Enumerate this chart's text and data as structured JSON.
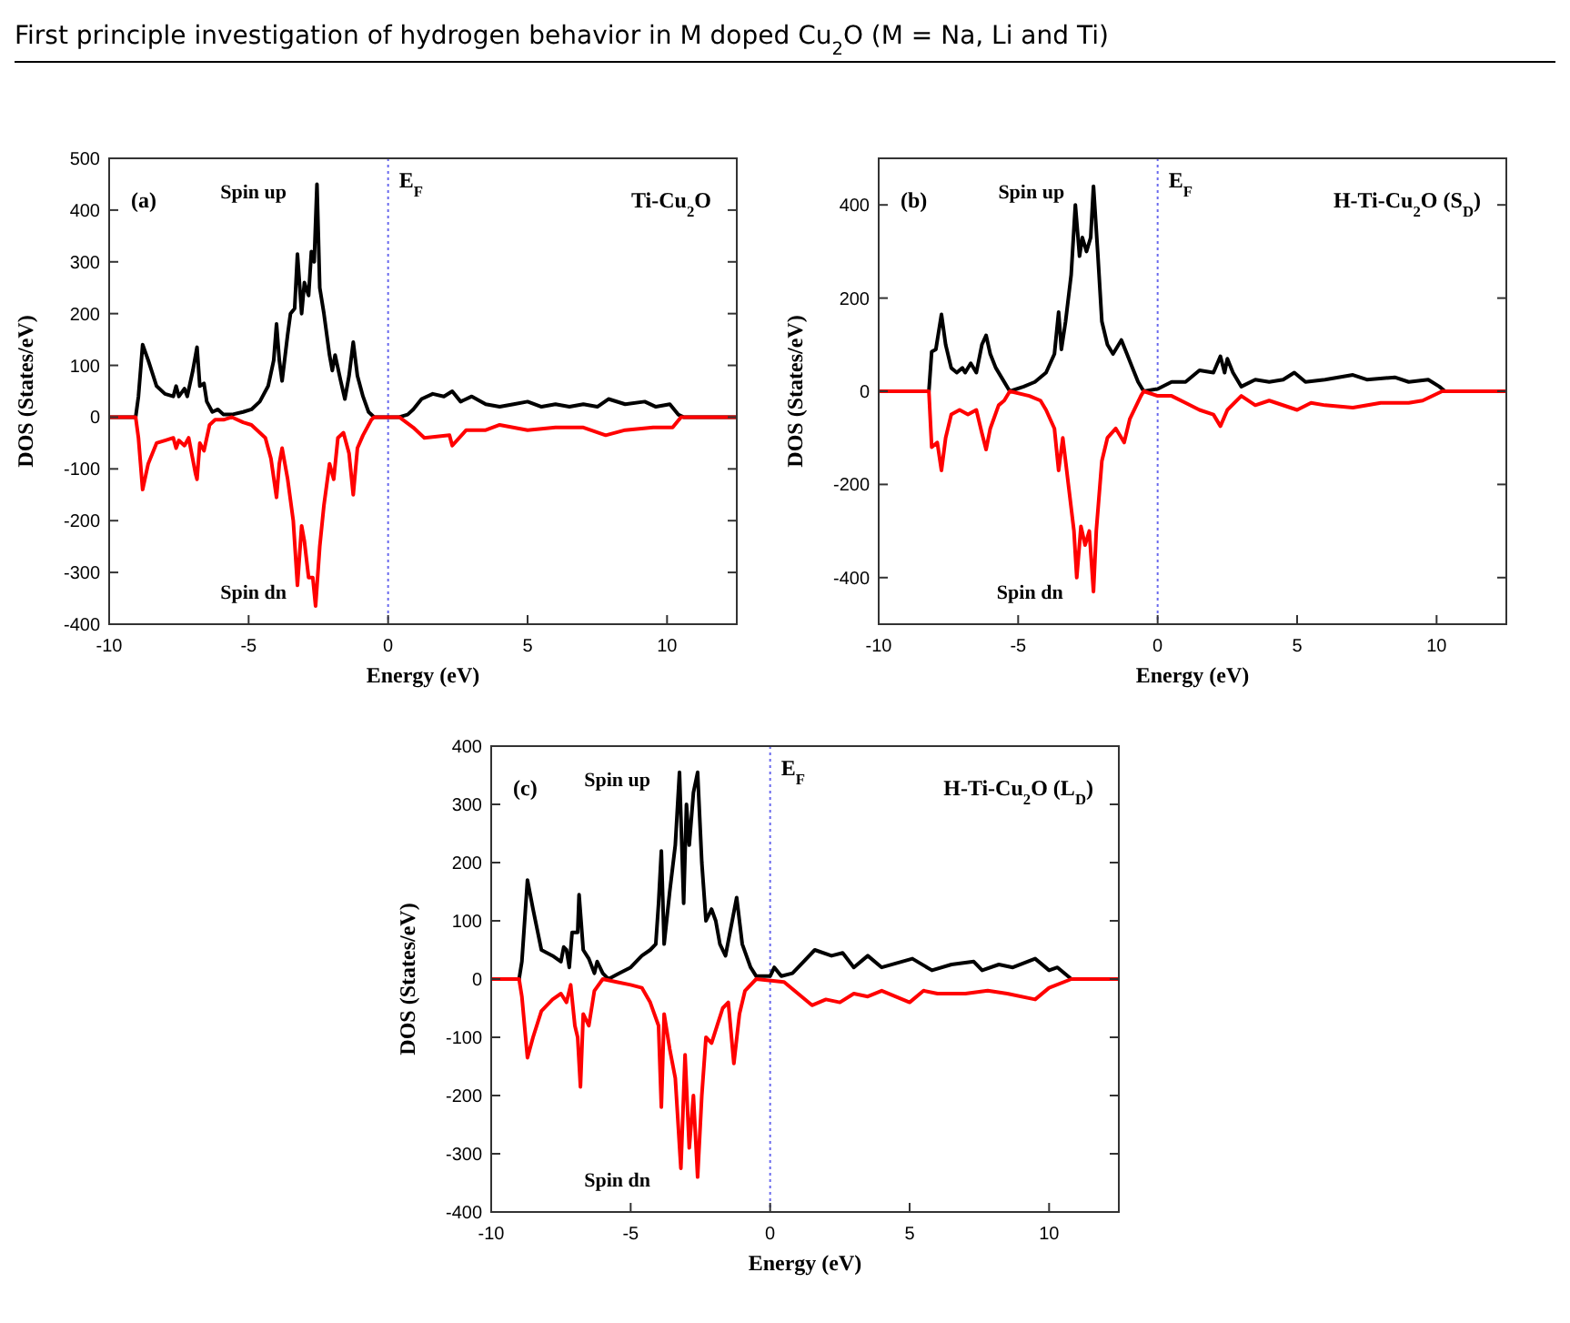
{
  "chart_data": [
    {
      "type": "line",
      "title": "First principle investigation of hydrogen behavior in M doped Cu$_{2}$O (M = Na, Li and Ti)",
      "xlabel": "Energy (eV)",
      "ylabel": "DOS (States/eV)",
      "xlim": [
        -10,
        12.5
      ],
      "xticks": [
        -10,
        -5,
        0,
        5,
        10
      ],
      "ylim": [
        -400,
        500
      ],
      "yticks": [
        -400,
        -300,
        -200,
        -100,
        0,
        100,
        200,
        300,
        400,
        500
      ],
      "grid": false,
      "marker": "none",
      "line_style": "solid",
      "annotations": [
        "(a)",
        "Ti-Cu$_{2}$O"
      ],
      "ref_lines": [
        {
          "axis": "x",
          "value": 0,
          "label": "E$_{F}$",
          "color": "#6a6aee",
          "line_style": "dotted"
        }
      ],
      "series": [
        {
          "name": "Spin up",
          "color": "#000000",
          "x": [
            -10,
            -9.05,
            -8.95,
            -8.8,
            -8.6,
            -8.3,
            -8,
            -7.7,
            -7.6,
            -7.5,
            -7.3,
            -7.2,
            -7.0,
            -6.85,
            -6.75,
            -6.6,
            -6.5,
            -6.3,
            -6.1,
            -5.9,
            -5.6,
            -5.2,
            -4.9,
            -4.6,
            -4.3,
            -4.1,
            -4.0,
            -3.9,
            -3.8,
            -3.6,
            -3.5,
            -3.35,
            -3.25,
            -3.1,
            -3.0,
            -2.85,
            -2.75,
            -2.65,
            -2.55,
            -2.45,
            -2.3,
            -2.1,
            -2.0,
            -1.9,
            -1.7,
            -1.55,
            -1.4,
            -1.25,
            -1.1,
            -0.9,
            -0.7,
            -0.5,
            0.4,
            0.7,
            0.9,
            1.2,
            1.6,
            2,
            2.3,
            2.6,
            3,
            3.5,
            4,
            4.5,
            5,
            5.5,
            6,
            6.5,
            7,
            7.5,
            7.9,
            8.5,
            9.2,
            9.6,
            10.1,
            10.4,
            10.6,
            12.5
          ],
          "values": [
            0,
            0,
            40,
            140,
            110,
            60,
            45,
            40,
            60,
            40,
            55,
            40,
            90,
            135,
            60,
            65,
            30,
            10,
            15,
            5,
            5,
            10,
            15,
            30,
            60,
            110,
            180,
            110,
            70,
            160,
            200,
            210,
            315,
            200,
            260,
            235,
            320,
            300,
            450,
            250,
            200,
            120,
            90,
            120,
            70,
            35,
            80,
            145,
            80,
            40,
            10,
            0,
            0,
            5,
            15,
            35,
            45,
            40,
            50,
            30,
            40,
            25,
            20,
            25,
            30,
            20,
            25,
            20,
            25,
            20,
            35,
            25,
            30,
            20,
            25,
            5,
            0,
            0
          ]
        },
        {
          "name": "Spin dn",
          "color": "#ff0000",
          "x": [
            -10,
            -9.05,
            -8.95,
            -8.8,
            -8.6,
            -8.3,
            -8,
            -7.7,
            -7.6,
            -7.5,
            -7.3,
            -7.15,
            -6.9,
            -6.85,
            -6.75,
            -6.6,
            -6.4,
            -6.2,
            -5.9,
            -5.6,
            -5.2,
            -4.9,
            -4.6,
            -4.4,
            -4.2,
            -4.0,
            -3.9,
            -3.8,
            -3.6,
            -3.4,
            -3.25,
            -3.1,
            -3.0,
            -2.85,
            -2.7,
            -2.6,
            -2.45,
            -2.3,
            -2.1,
            -1.95,
            -1.8,
            -1.6,
            -1.4,
            -1.25,
            -1.1,
            -0.9,
            -0.6,
            -0.5,
            0.4,
            0.9,
            1.3,
            2.2,
            2.3,
            2.8,
            3.5,
            4,
            5,
            6,
            7,
            7.8,
            8.5,
            9.5,
            10.2,
            10.5,
            12.5
          ],
          "values": [
            0,
            0,
            -40,
            -140,
            -90,
            -50,
            -45,
            -40,
            -60,
            -45,
            -55,
            -40,
            -110,
            -120,
            -50,
            -65,
            -15,
            -5,
            -5,
            0,
            -10,
            -15,
            -30,
            -40,
            -80,
            -155,
            -90,
            -60,
            -120,
            -200,
            -325,
            -210,
            -240,
            -310,
            -310,
            -365,
            -250,
            -170,
            -90,
            -120,
            -40,
            -30,
            -70,
            -150,
            -60,
            -35,
            -5,
            0,
            0,
            -20,
            -40,
            -35,
            -55,
            -25,
            -25,
            -15,
            -25,
            -20,
            -20,
            -35,
            -25,
            -20,
            -20,
            0,
            0
          ]
        }
      ]
    },
    {
      "type": "line",
      "xlabel": "Energy (eV)",
      "ylabel": "DOS (States/eV)",
      "xlim": [
        -10,
        12.5
      ],
      "xticks": [
        -10,
        -5,
        0,
        5,
        10
      ],
      "ylim": [
        -500,
        500
      ],
      "yticks": [
        -400,
        -200,
        0,
        200,
        400
      ],
      "grid": false,
      "marker": "none",
      "line_style": "solid",
      "annotations": [
        "(b)",
        "H-Ti-Cu$_{2}$O (S$_{D}$)"
      ],
      "ref_lines": [
        {
          "axis": "x",
          "value": 0,
          "label": "E$_{F}$",
          "color": "#6a6aee",
          "line_style": "dotted"
        }
      ],
      "series": [
        {
          "name": "Spin up",
          "color": "#000000",
          "x": [
            -10,
            -8.2,
            -8.1,
            -7.95,
            -7.75,
            -7.6,
            -7.4,
            -7.2,
            -7,
            -6.9,
            -6.7,
            -6.5,
            -6.3,
            -6.15,
            -6,
            -5.8,
            -5.6,
            -5.3,
            -4.8,
            -4.4,
            -4,
            -3.7,
            -3.55,
            -3.45,
            -3.3,
            -3.1,
            -2.95,
            -2.8,
            -2.7,
            -2.55,
            -2.4,
            -2.3,
            -2.15,
            -2,
            -1.8,
            -1.6,
            -1.3,
            -1.1,
            -0.9,
            -0.7,
            -0.5,
            0,
            0.5,
            1,
            1.5,
            2,
            2.25,
            2.4,
            2.5,
            2.7,
            3,
            3.5,
            4,
            4.5,
            4.9,
            5.3,
            6,
            7,
            7.5,
            8.5,
            9,
            9.7,
            10.1,
            10.3,
            12.5
          ],
          "values": [
            0,
            0,
            85,
            90,
            165,
            100,
            50,
            40,
            50,
            40,
            60,
            40,
            100,
            120,
            80,
            50,
            30,
            0,
            10,
            20,
            40,
            80,
            170,
            90,
            150,
            250,
            400,
            290,
            330,
            300,
            330,
            440,
            300,
            150,
            100,
            80,
            110,
            80,
            50,
            20,
            0,
            5,
            20,
            20,
            45,
            40,
            75,
            40,
            70,
            40,
            10,
            25,
            20,
            25,
            40,
            20,
            25,
            35,
            25,
            30,
            20,
            25,
            10,
            0,
            0
          ]
        },
        {
          "name": "Spin dn",
          "color": "#ff0000",
          "x": [
            -10,
            -8.2,
            -8.1,
            -7.9,
            -7.75,
            -7.6,
            -7.4,
            -7.1,
            -6.8,
            -6.5,
            -6.3,
            -6.15,
            -6,
            -5.7,
            -5.5,
            -5.3,
            -4.6,
            -4.2,
            -4,
            -3.7,
            -3.55,
            -3.4,
            -3.2,
            -3.0,
            -2.9,
            -2.75,
            -2.6,
            -2.45,
            -2.3,
            -2.2,
            -2,
            -1.8,
            -1.5,
            -1.2,
            -1,
            -0.6,
            -0.5,
            0,
            0.5,
            1,
            1.5,
            2,
            2.25,
            2.5,
            3,
            3.5,
            4,
            5,
            5.5,
            6,
            7,
            8,
            9,
            9.5,
            10.2,
            12.5
          ],
          "values": [
            0,
            0,
            -120,
            -110,
            -170,
            -100,
            -50,
            -40,
            -50,
            -40,
            -90,
            -125,
            -80,
            -30,
            -20,
            0,
            -10,
            -20,
            -40,
            -80,
            -170,
            -100,
            -200,
            -300,
            -400,
            -290,
            -330,
            -300,
            -430,
            -300,
            -150,
            -100,
            -80,
            -110,
            -60,
            -10,
            0,
            -10,
            -10,
            -25,
            -40,
            -50,
            -75,
            -40,
            -10,
            -30,
            -20,
            -40,
            -25,
            -30,
            -35,
            -25,
            -25,
            -20,
            0,
            0
          ]
        }
      ]
    },
    {
      "type": "line",
      "xlabel": "Energy (eV)",
      "ylabel": "DOS (States/eV)",
      "xlim": [
        -10,
        12.5
      ],
      "xticks": [
        -10,
        -5,
        0,
        5,
        10
      ],
      "ylim": [
        -400,
        400
      ],
      "yticks": [
        -400,
        -300,
        -200,
        -100,
        0,
        100,
        200,
        300,
        400
      ],
      "grid": false,
      "marker": "none",
      "line_style": "solid",
      "annotations": [
        "(c)",
        "H-Ti-Cu$_{2}$O (L$_{D}$)"
      ],
      "ref_lines": [
        {
          "axis": "x",
          "value": 0,
          "label": "E$_{F}$",
          "color": "#6a6aee",
          "line_style": "dotted"
        }
      ],
      "series": [
        {
          "name": "Spin up",
          "color": "#000000",
          "x": [
            -10,
            -9,
            -8.9,
            -8.7,
            -8.5,
            -8.2,
            -7.8,
            -7.5,
            -7.4,
            -7.3,
            -7.2,
            -7.1,
            -6.9,
            -6.85,
            -6.7,
            -6.5,
            -6.3,
            -6.2,
            -6,
            -5.8,
            -5.4,
            -5,
            -4.6,
            -4.3,
            -4.1,
            -4,
            -3.9,
            -3.8,
            -3.6,
            -3.4,
            -3.25,
            -3.1,
            -3,
            -2.9,
            -2.75,
            -2.6,
            -2.45,
            -2.3,
            -2.1,
            -1.95,
            -1.8,
            -1.6,
            -1.4,
            -1.2,
            -1,
            -0.7,
            -0.5,
            0,
            0.15,
            0.4,
            0.8,
            1.2,
            1.6,
            2.2,
            2.6,
            3,
            3.5,
            4,
            5.1,
            5.8,
            6.5,
            7.3,
            7.6,
            8.2,
            8.7,
            9.5,
            10,
            10.3,
            10.8,
            12.5
          ],
          "values": [
            0,
            0,
            30,
            170,
            120,
            50,
            40,
            30,
            55,
            50,
            20,
            80,
            80,
            145,
            50,
            35,
            10,
            30,
            10,
            0,
            10,
            20,
            40,
            50,
            60,
            130,
            220,
            60,
            150,
            230,
            355,
            130,
            300,
            230,
            320,
            355,
            200,
            100,
            120,
            100,
            60,
            40,
            90,
            140,
            60,
            20,
            5,
            5,
            20,
            5,
            10,
            30,
            50,
            40,
            45,
            20,
            40,
            20,
            35,
            15,
            25,
            30,
            15,
            25,
            20,
            35,
            15,
            20,
            0,
            0
          ]
        },
        {
          "name": "Spin dn",
          "color": "#ff0000",
          "x": [
            -10,
            -9,
            -8.9,
            -8.7,
            -8.5,
            -8.2,
            -7.8,
            -7.5,
            -7.3,
            -7.15,
            -7,
            -6.9,
            -6.8,
            -6.7,
            -6.5,
            -6.3,
            -6,
            -5.5,
            -5,
            -4.6,
            -4.3,
            -4,
            -3.9,
            -3.8,
            -3.6,
            -3.4,
            -3.2,
            -3.05,
            -2.9,
            -2.75,
            -2.6,
            -2.45,
            -2.3,
            -2.1,
            -1.9,
            -1.7,
            -1.5,
            -1.3,
            -1.1,
            -0.9,
            -0.5,
            0.5,
            1,
            1.5,
            2,
            2.5,
            3,
            3.5,
            4,
            5,
            5.5,
            6,
            7,
            7.8,
            8.5,
            9.5,
            10,
            10.8,
            12.5
          ],
          "values": [
            0,
            0,
            -30,
            -135,
            -100,
            -55,
            -35,
            -25,
            -40,
            -10,
            -80,
            -100,
            -185,
            -60,
            -80,
            -20,
            0,
            -5,
            -10,
            -15,
            -40,
            -80,
            -220,
            -60,
            -120,
            -170,
            -325,
            -130,
            -290,
            -200,
            -340,
            -200,
            -100,
            -110,
            -80,
            -50,
            -40,
            -145,
            -60,
            -20,
            0,
            -5,
            -25,
            -45,
            -35,
            -40,
            -25,
            -30,
            -20,
            -40,
            -20,
            -25,
            -25,
            -20,
            -25,
            -35,
            -15,
            0,
            0
          ]
        }
      ]
    }
  ]
}
